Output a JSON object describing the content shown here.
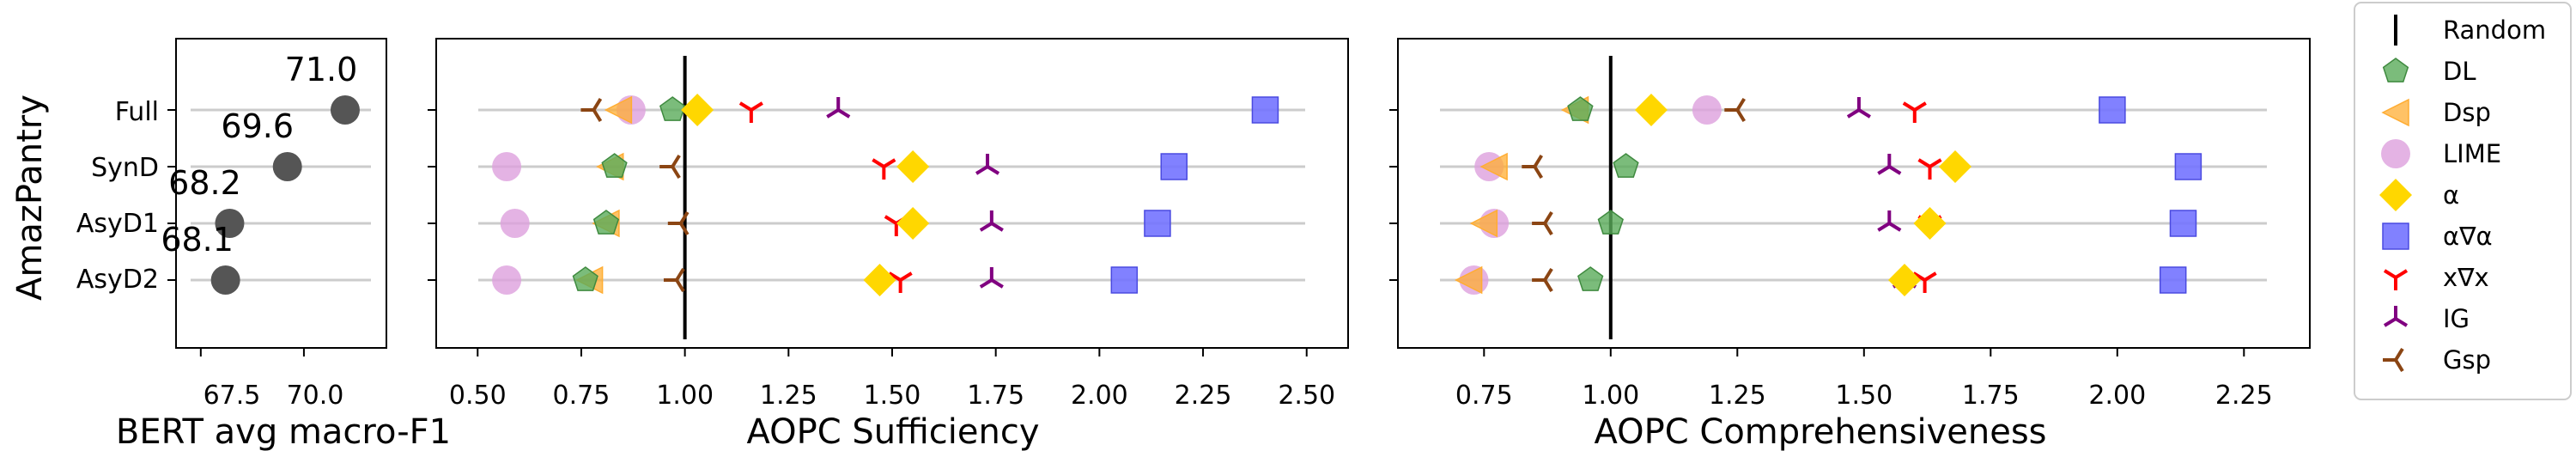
{
  "chart_data": [
    {
      "type": "scatter",
      "panel": "f1",
      "ylabel": "AmazPantry",
      "xlabel": "BERT avg macro-F1",
      "categories": [
        "Full",
        "SynD",
        "AsyD1",
        "AsyD2"
      ],
      "xlim": [
        66.9,
        72.0
      ],
      "xticks": [
        67.5,
        70.0
      ],
      "grid": "horizontal-per-category",
      "values": [
        71.0,
        69.6,
        68.2,
        68.1
      ],
      "labels": [
        "71.0",
        "69.6",
        "68.2",
        "68.1"
      ]
    },
    {
      "type": "scatter",
      "panel": "sufficiency",
      "xlabel": "AOPC Sufficiency",
      "categories": [
        "Full",
        "SynD",
        "AsyD1",
        "AsyD2"
      ],
      "xlim": [
        0.4,
        2.6
      ],
      "xticks": [
        0.5,
        0.75,
        1.0,
        1.25,
        1.5,
        1.75,
        2.0,
        2.25,
        2.5
      ],
      "reference_line": 1.0,
      "series": [
        {
          "name": "DL",
          "values": [
            0.97,
            0.83,
            0.81,
            0.76
          ]
        },
        {
          "name": "Dsp",
          "values": [
            0.84,
            0.82,
            0.81,
            0.77
          ]
        },
        {
          "name": "LIME",
          "values": [
            0.87,
            0.57,
            0.59,
            0.57
          ]
        },
        {
          "name": "α",
          "values": [
            1.03,
            1.55,
            1.55,
            1.47
          ]
        },
        {
          "name": "α∇α",
          "values": [
            2.4,
            2.18,
            2.14,
            2.06
          ]
        },
        {
          "name": "x∇x",
          "values": [
            1.16,
            1.48,
            1.51,
            1.52
          ]
        },
        {
          "name": "IG",
          "values": [
            1.37,
            1.73,
            1.74,
            1.74
          ]
        },
        {
          "name": "Gsp",
          "values": [
            0.78,
            0.97,
            0.99,
            0.98
          ]
        }
      ]
    },
    {
      "type": "scatter",
      "panel": "comprehensiveness",
      "xlabel": "AOPC Comprehensiveness",
      "categories": [
        "Full",
        "SynD",
        "AsyD1",
        "AsyD2"
      ],
      "xlim": [
        0.58,
        2.38
      ],
      "xticks": [
        0.75,
        1.0,
        1.25,
        1.5,
        1.75,
        2.0,
        2.25
      ],
      "reference_line": 1.0,
      "series": [
        {
          "name": "DL",
          "values": [
            0.94,
            1.03,
            1.0,
            0.96
          ]
        },
        {
          "name": "Dsp",
          "values": [
            0.93,
            0.77,
            0.75,
            0.72
          ]
        },
        {
          "name": "LIME",
          "values": [
            1.19,
            0.76,
            0.77,
            0.73
          ]
        },
        {
          "name": "α",
          "values": [
            1.08,
            1.68,
            1.63,
            1.58
          ]
        },
        {
          "name": "α∇α",
          "values": [
            1.99,
            2.14,
            2.13,
            2.11
          ]
        },
        {
          "name": "x∇x",
          "values": [
            1.6,
            1.63,
            1.63,
            1.62
          ]
        },
        {
          "name": "IG",
          "values": [
            1.49,
            1.55,
            1.55,
            1.58
          ]
        },
        {
          "name": "Gsp",
          "values": [
            1.25,
            0.85,
            0.87,
            0.87
          ]
        }
      ]
    }
  ],
  "legend": {
    "placement": "right",
    "items": [
      {
        "label": "Random",
        "marker": "vline",
        "color": "#000000"
      },
      {
        "label": "DL",
        "marker": "pentagon",
        "color": "#5aab5a"
      },
      {
        "label": "Dsp",
        "marker": "triangle-left",
        "color": "#ffad33"
      },
      {
        "label": "LIME",
        "marker": "circle",
        "color": "#dda0dd"
      },
      {
        "label": "α",
        "marker": "diamond",
        "color": "#ffd700"
      },
      {
        "label": "α∇α",
        "marker": "square",
        "color": "#7373ff"
      },
      {
        "label": "x∇x",
        "marker": "tri-down",
        "color": "#ff0000"
      },
      {
        "label": "IG",
        "marker": "tri-up",
        "color": "#800080"
      },
      {
        "label": "Gsp",
        "marker": "tri-left",
        "color": "#8b4513"
      }
    ]
  }
}
